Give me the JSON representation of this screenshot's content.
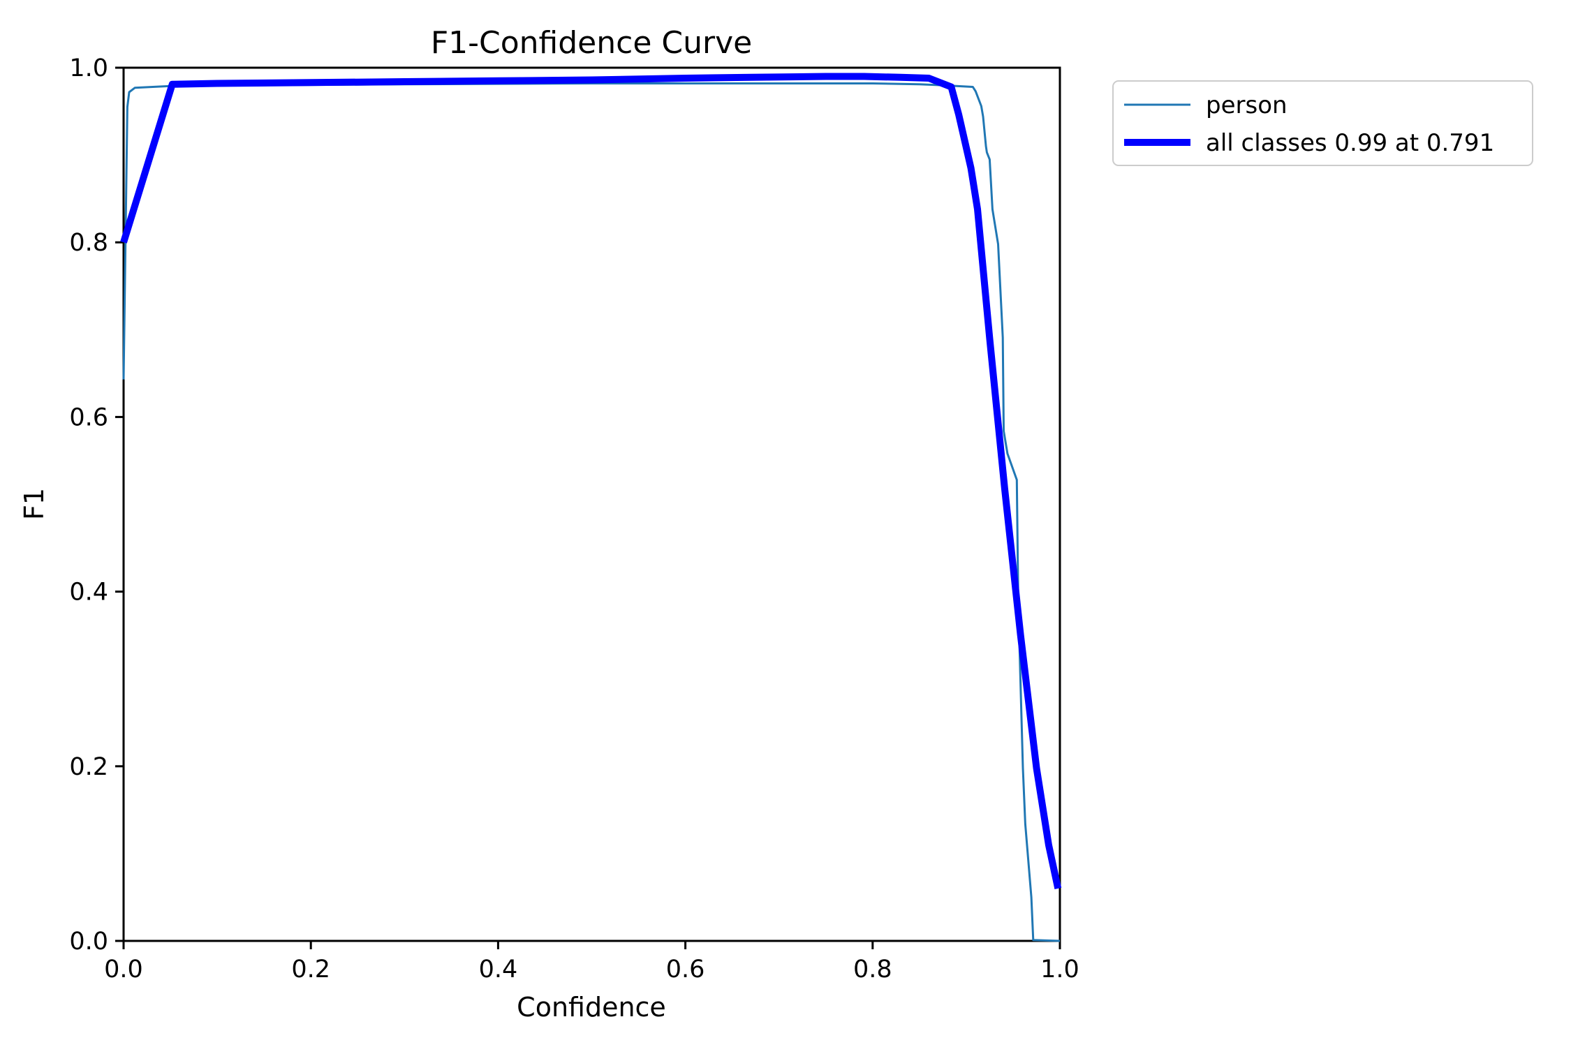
{
  "chart_data": {
    "type": "line",
    "title": "F1-Confidence Curve",
    "xlabel": "Confidence",
    "ylabel": "F1",
    "xlim": [
      0.0,
      1.0
    ],
    "ylim": [
      0.0,
      1.0
    ],
    "x_ticks": [
      "0.0",
      "0.2",
      "0.4",
      "0.6",
      "0.8",
      "1.0"
    ],
    "y_ticks": [
      "0.0",
      "0.2",
      "0.4",
      "0.6",
      "0.8",
      "1.0"
    ],
    "grid": false,
    "legend": {
      "position": "upper-right-outside",
      "border_color": "#cccccc",
      "background": "#ffffff"
    },
    "series": [
      {
        "key": "person",
        "name": "person",
        "color": "#2077b4",
        "line_width": 3,
        "points": [
          [
            0.0,
            0.643
          ],
          [
            0.004,
            0.955
          ],
          [
            0.006,
            0.972
          ],
          [
            0.012,
            0.977
          ],
          [
            0.05,
            0.979
          ],
          [
            0.15,
            0.98
          ],
          [
            0.3,
            0.981
          ],
          [
            0.5,
            0.982
          ],
          [
            0.7,
            0.982
          ],
          [
            0.8,
            0.982
          ],
          [
            0.85,
            0.981
          ],
          [
            0.872,
            0.98
          ],
          [
            0.907,
            0.978
          ],
          [
            0.91,
            0.973
          ],
          [
            0.916,
            0.956
          ],
          [
            0.918,
            0.944
          ],
          [
            0.921,
            0.91
          ],
          [
            0.922,
            0.903
          ],
          [
            0.925,
            0.895
          ],
          [
            0.928,
            0.838
          ],
          [
            0.934,
            0.798
          ],
          [
            0.939,
            0.691
          ],
          [
            0.94,
            0.584
          ],
          [
            0.944,
            0.558
          ],
          [
            0.954,
            0.528
          ],
          [
            0.9555,
            0.39
          ],
          [
            0.9605,
            0.198
          ],
          [
            0.963,
            0.134
          ],
          [
            0.9695,
            0.05
          ],
          [
            0.9715,
            0.001
          ],
          [
            1.0,
            0.0
          ]
        ]
      },
      {
        "key": "all-classes",
        "name": "all classes 0.99 at 0.791",
        "color": "#0000ff",
        "line_width": 10,
        "best_f1": 0.99,
        "best_confidence": 0.791,
        "points": [
          [
            0.0,
            0.8
          ],
          [
            0.052,
            0.981
          ],
          [
            0.1,
            0.982
          ],
          [
            0.2,
            0.983
          ],
          [
            0.3,
            0.984
          ],
          [
            0.4,
            0.985
          ],
          [
            0.5,
            0.986
          ],
          [
            0.6,
            0.988
          ],
          [
            0.67,
            0.989
          ],
          [
            0.75,
            0.99
          ],
          [
            0.791,
            0.99
          ],
          [
            0.83,
            0.989
          ],
          [
            0.86,
            0.988
          ],
          [
            0.884,
            0.978
          ],
          [
            0.892,
            0.946
          ],
          [
            0.905,
            0.885
          ],
          [
            0.912,
            0.838
          ],
          [
            0.925,
            0.69
          ],
          [
            0.941,
            0.518
          ],
          [
            0.958,
            0.35
          ],
          [
            0.975,
            0.198
          ],
          [
            0.988,
            0.11
          ],
          [
            0.998,
            0.06
          ]
        ]
      }
    ]
  }
}
